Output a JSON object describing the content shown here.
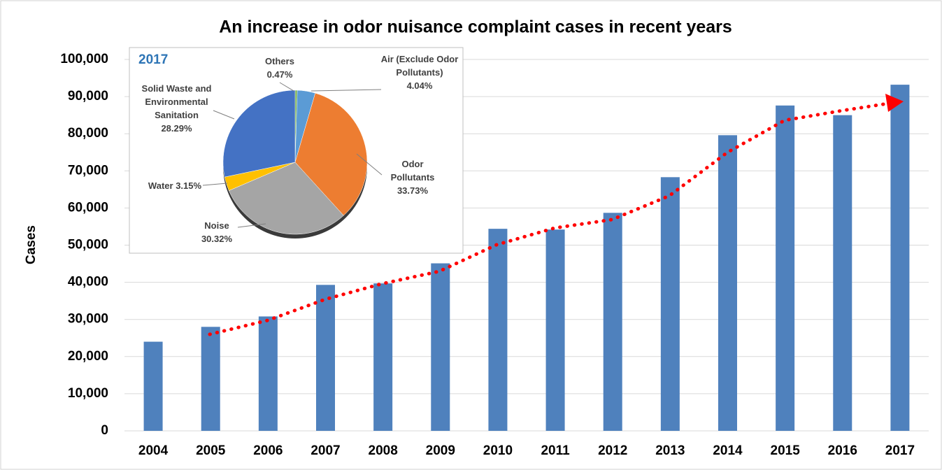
{
  "chart_data": [
    {
      "type": "bar",
      "title": "An increase in odor nuisance complaint cases in recent years",
      "y_label": "Cases",
      "categories": [
        "2004",
        "2005",
        "2006",
        "2007",
        "2008",
        "2009",
        "2010",
        "2011",
        "2012",
        "2013",
        "2014",
        "2015",
        "2016",
        "2017"
      ],
      "values": [
        24000,
        28000,
        30800,
        39300,
        39700,
        45100,
        54400,
        54200,
        58700,
        68300,
        79600,
        87600,
        85000,
        93200
      ],
      "color": "#4f81bd",
      "ylim": [
        0,
        100000
      ],
      "yticks": [
        0,
        {
          "value": 10000,
          "label": "10,000"
        },
        {
          "value": 20000,
          "label": "20,000"
        },
        {
          "value": 30000,
          "label": "30,000"
        },
        {
          "value": 40000,
          "label": "40,000"
        },
        {
          "value": 50000,
          "label": "50,000"
        },
        {
          "value": 60000,
          "label": "60,000"
        },
        {
          "value": 70000,
          "label": "70,000"
        },
        {
          "value": 80000,
          "label": "80,000"
        },
        {
          "value": 90000,
          "label": "90,000"
        },
        {
          "value": 100000,
          "label": "100,000"
        }
      ],
      "grid": true
    },
    {
      "type": "pie",
      "title": "2017",
      "categories": [
        "Others",
        "Air (Exclude Odor Pollutants)",
        "Odor Pollutants",
        "Noise",
        "Water",
        "Solid Waste and Environmental Sanitation"
      ],
      "values": [
        0.47,
        4.04,
        33.73,
        30.32,
        3.15,
        28.29
      ],
      "value_labels": [
        "0.47%",
        "4.04%",
        "33.73%",
        "30.32%",
        "3.15%",
        "28.29%"
      ],
      "colors": [
        "#70ad47",
        "#5b9bd5",
        "#ed7d31",
        "#a5a5a5",
        "#ffc000",
        "#4472c4"
      ]
    }
  ]
}
